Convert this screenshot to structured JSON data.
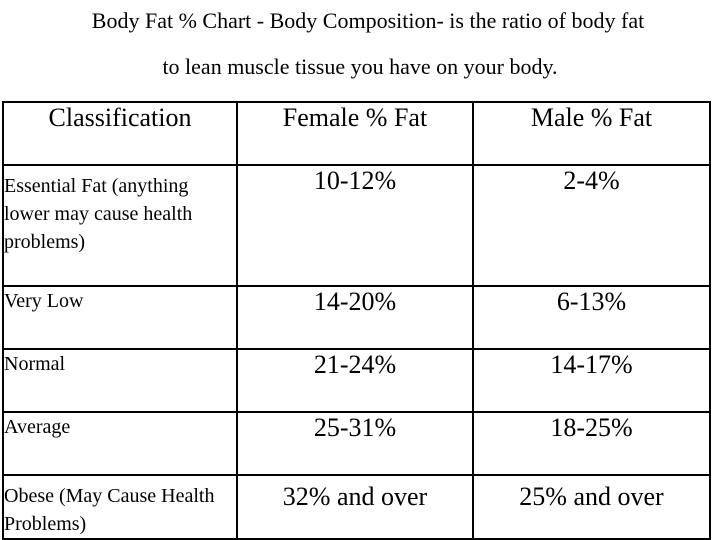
{
  "title": {
    "line1": "Body Fat % Chart - Body Composition- is the ratio of body fat",
    "line2": "to lean muscle tissue you have on your body."
  },
  "table": {
    "headers": [
      "Classification",
      "Female % Fat",
      "Male % Fat"
    ],
    "rows": [
      [
        "Essential Fat (anything lower may cause health problems)",
        "10-12%",
        "2-4%"
      ],
      [
        "Very Low",
        "14-20%",
        "6-13%"
      ],
      [
        "Normal",
        "21-24%",
        "14-17%"
      ],
      [
        "Average",
        "25-31%",
        "18-25%"
      ],
      [
        "Obese (May Cause Health Problems)",
        "32% and over",
        "25% and over"
      ]
    ]
  }
}
